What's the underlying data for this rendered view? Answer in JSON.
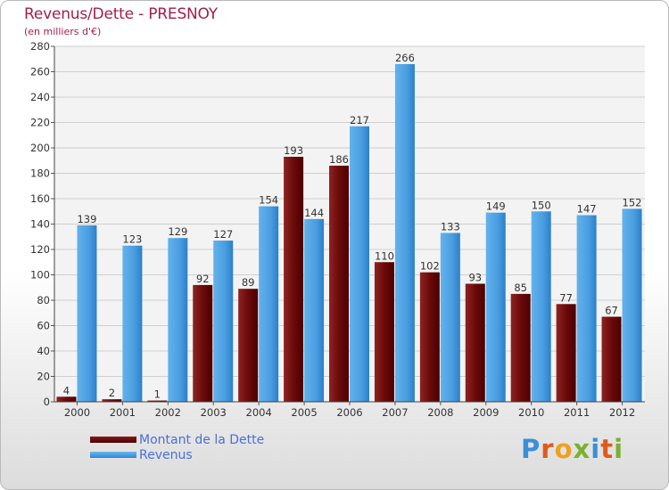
{
  "header": {
    "title": "Revenus/Dette - PRESNOY",
    "subtitle": "(en milliers d'€)"
  },
  "logo": {
    "text": "Proxiti"
  },
  "colors": {
    "dette": "#6b0a0a",
    "revenus": "#4a9de0",
    "title": "#a01e4e",
    "legend_text": "#4a6fd8"
  },
  "chart_data": {
    "type": "bar",
    "title": "Revenus/Dette - PRESNOY",
    "ylabel": "(en milliers d'€)",
    "xlabel": "",
    "ylim": [
      0,
      280
    ],
    "yticks": [
      0,
      20,
      40,
      60,
      80,
      100,
      120,
      140,
      160,
      180,
      200,
      220,
      240,
      260,
      280
    ],
    "grid": true,
    "legend_position": "bottom-left",
    "categories": [
      "2000",
      "2001",
      "2002",
      "2003",
      "2004",
      "2005",
      "2006",
      "2007",
      "2008",
      "2009",
      "2010",
      "2011",
      "2012"
    ],
    "series": [
      {
        "name": "Montant de la Dette",
        "values": [
          4,
          2,
          1,
          92,
          89,
          193,
          186,
          110,
          102,
          93,
          85,
          77,
          67
        ]
      },
      {
        "name": "Revenus",
        "values": [
          139,
          123,
          129,
          127,
          154,
          144,
          217,
          266,
          133,
          149,
          150,
          147,
          152
        ]
      }
    ]
  }
}
